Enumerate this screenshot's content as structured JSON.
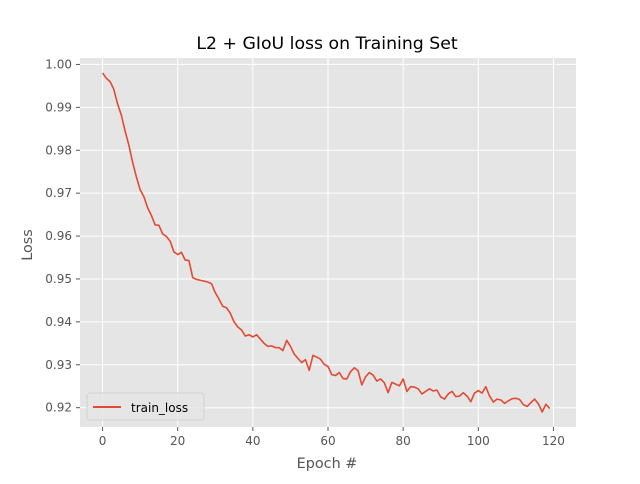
{
  "chart_data": {
    "type": "line",
    "title": "L2 + GIoU loss on Training Set",
    "xlabel": "Epoch #",
    "ylabel": "Loss",
    "xlim": [
      -6,
      126
    ],
    "ylim": [
      0.9155,
      1.0015
    ],
    "xticks": [
      0,
      20,
      40,
      60,
      80,
      100,
      120
    ],
    "yticks": [
      1.0,
      0.99,
      0.98,
      0.97,
      0.96,
      0.95,
      0.94,
      0.93,
      0.92
    ],
    "ytick_labels": [
      "1.00",
      "0.99",
      "0.98",
      "0.97",
      "0.96",
      "0.95",
      "0.94",
      "0.93",
      "0.92"
    ],
    "grid": true,
    "legend": {
      "position": "lower-left"
    },
    "series": [
      {
        "name": "train_loss",
        "color": "#e24a33",
        "x": [
          0,
          1,
          2,
          3,
          4,
          5,
          6,
          7,
          8,
          9,
          10,
          11,
          12,
          13,
          14,
          15,
          16,
          17,
          18,
          19,
          20,
          21,
          22,
          23,
          24,
          25,
          26,
          27,
          28,
          29,
          30,
          31,
          32,
          33,
          34,
          35,
          36,
          37,
          38,
          39,
          40,
          41,
          42,
          43,
          44,
          45,
          46,
          47,
          48,
          49,
          50,
          51,
          52,
          53,
          54,
          55,
          56,
          57,
          58,
          59,
          60,
          61,
          62,
          63,
          64,
          65,
          66,
          67,
          68,
          69,
          70,
          71,
          72,
          73,
          74,
          75,
          76,
          77,
          78,
          79,
          80,
          81,
          82,
          83,
          84,
          85,
          86,
          87,
          88,
          89,
          90,
          91,
          92,
          93,
          94,
          95,
          96,
          97,
          98,
          99,
          100,
          101,
          102,
          103,
          104,
          105,
          106,
          107,
          108,
          109,
          110,
          111,
          112,
          113,
          114,
          115,
          116,
          117,
          118,
          119
        ],
        "y": [
          0.998,
          0.9968,
          0.996,
          0.9942,
          0.9908,
          0.9882,
          0.9845,
          0.9812,
          0.9772,
          0.9738,
          0.9708,
          0.9692,
          0.9666,
          0.9648,
          0.9626,
          0.9625,
          0.9605,
          0.9599,
          0.9588,
          0.9563,
          0.9557,
          0.9562,
          0.9544,
          0.9543,
          0.9503,
          0.9499,
          0.9497,
          0.9495,
          0.9493,
          0.9489,
          0.9468,
          0.9453,
          0.9436,
          0.9433,
          0.942,
          0.94,
          0.9388,
          0.9381,
          0.9367,
          0.937,
          0.9365,
          0.937,
          0.936,
          0.935,
          0.9343,
          0.9344,
          0.934,
          0.934,
          0.9333,
          0.9357,
          0.9343,
          0.9325,
          0.9315,
          0.9305,
          0.9312,
          0.9287,
          0.9322,
          0.9318,
          0.9313,
          0.9301,
          0.9296,
          0.9277,
          0.9275,
          0.9282,
          0.9268,
          0.9267,
          0.9284,
          0.9293,
          0.9286,
          0.9253,
          0.9272,
          0.9282,
          0.9276,
          0.9262,
          0.9267,
          0.9258,
          0.9235,
          0.9259,
          0.9255,
          0.9251,
          0.9267,
          0.9238,
          0.9249,
          0.9248,
          0.9244,
          0.9232,
          0.9238,
          0.9244,
          0.9239,
          0.9241,
          0.9225,
          0.922,
          0.9232,
          0.9238,
          0.9226,
          0.9227,
          0.9235,
          0.9227,
          0.9214,
          0.9234,
          0.924,
          0.9234,
          0.9249,
          0.9227,
          0.9213,
          0.922,
          0.9218,
          0.921,
          0.9216,
          0.9221,
          0.9222,
          0.9219,
          0.9207,
          0.9203,
          0.9212,
          0.922,
          0.9209,
          0.919,
          0.9208,
          0.9198
        ]
      }
    ]
  }
}
